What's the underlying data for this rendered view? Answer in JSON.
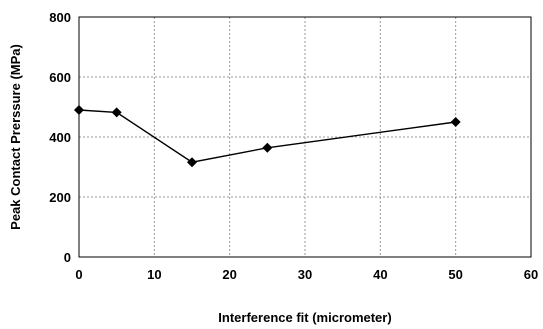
{
  "chart_data": {
    "type": "scatter",
    "xlabel": "Interference fit (micrometer)",
    "ylabel": "Peak Contact Prerssure (MPa)",
    "xlim": [
      0,
      60
    ],
    "ylim": [
      0,
      800
    ],
    "xticks": [
      0,
      10,
      20,
      30,
      40,
      50,
      60
    ],
    "yticks": [
      0,
      200,
      400,
      600,
      800
    ],
    "grid": true,
    "marker": "diamond",
    "series": [
      {
        "x": [
          0,
          5,
          15,
          25,
          50
        ],
        "y": [
          490,
          482,
          316,
          364,
          450
        ]
      }
    ]
  }
}
